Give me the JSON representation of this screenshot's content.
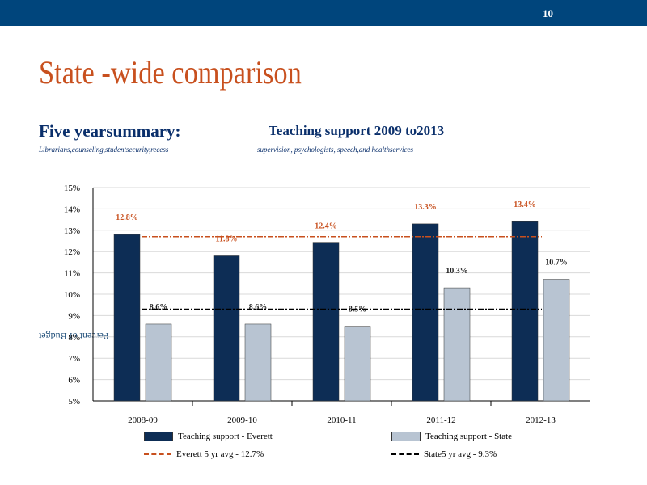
{
  "header": {
    "page_number": "10",
    "bar_color": "#00457c"
  },
  "title": "State -wide comparison",
  "subtitle": {
    "lead": "Five yearsummary:",
    "rest": "Teaching support 2009 to2013"
  },
  "note": {
    "lead": "Librarians,counseling,studentsecurity,recess",
    "rest": "supervision, psychologists, speech,and healthservices"
  },
  "chart_data": {
    "type": "bar",
    "categories": [
      "2008-09",
      "2009-10",
      "2010-11",
      "2011-12",
      "2012-13"
    ],
    "series": [
      {
        "name": "Teaching support - Everett",
        "values": [
          12.8,
          11.8,
          12.4,
          13.3,
          13.4
        ],
        "color": "#0d2d55",
        "labels": [
          "12.8%",
          "11.8%",
          "12.4%",
          "13.3%",
          "13.4%"
        ],
        "label_color": "#c8501e"
      },
      {
        "name": "Teaching support - State",
        "values": [
          8.6,
          8.6,
          8.5,
          10.3,
          10.7
        ],
        "color": "#b8c4d2",
        "labels": [
          "8.6%",
          "8.6%",
          "8.5%",
          "10.3%",
          "10.7%"
        ],
        "label_color": "#222222"
      }
    ],
    "reference_lines": [
      {
        "name": "Everett 5 yr avg - 12.7%",
        "value": 12.7,
        "color": "#c8501e"
      },
      {
        "name": "State5 yr avg - 9.3%",
        "value": 9.3,
        "color": "#000000"
      }
    ],
    "ylabel": "Percent of Budget",
    "ylim": [
      5,
      15
    ],
    "yticks": [
      "5%",
      "6%",
      "7%",
      "8%",
      "9%",
      "10%",
      "11%",
      "12%",
      "13%",
      "14%",
      "15%"
    ],
    "grid": true,
    "legend_position": "bottom"
  }
}
